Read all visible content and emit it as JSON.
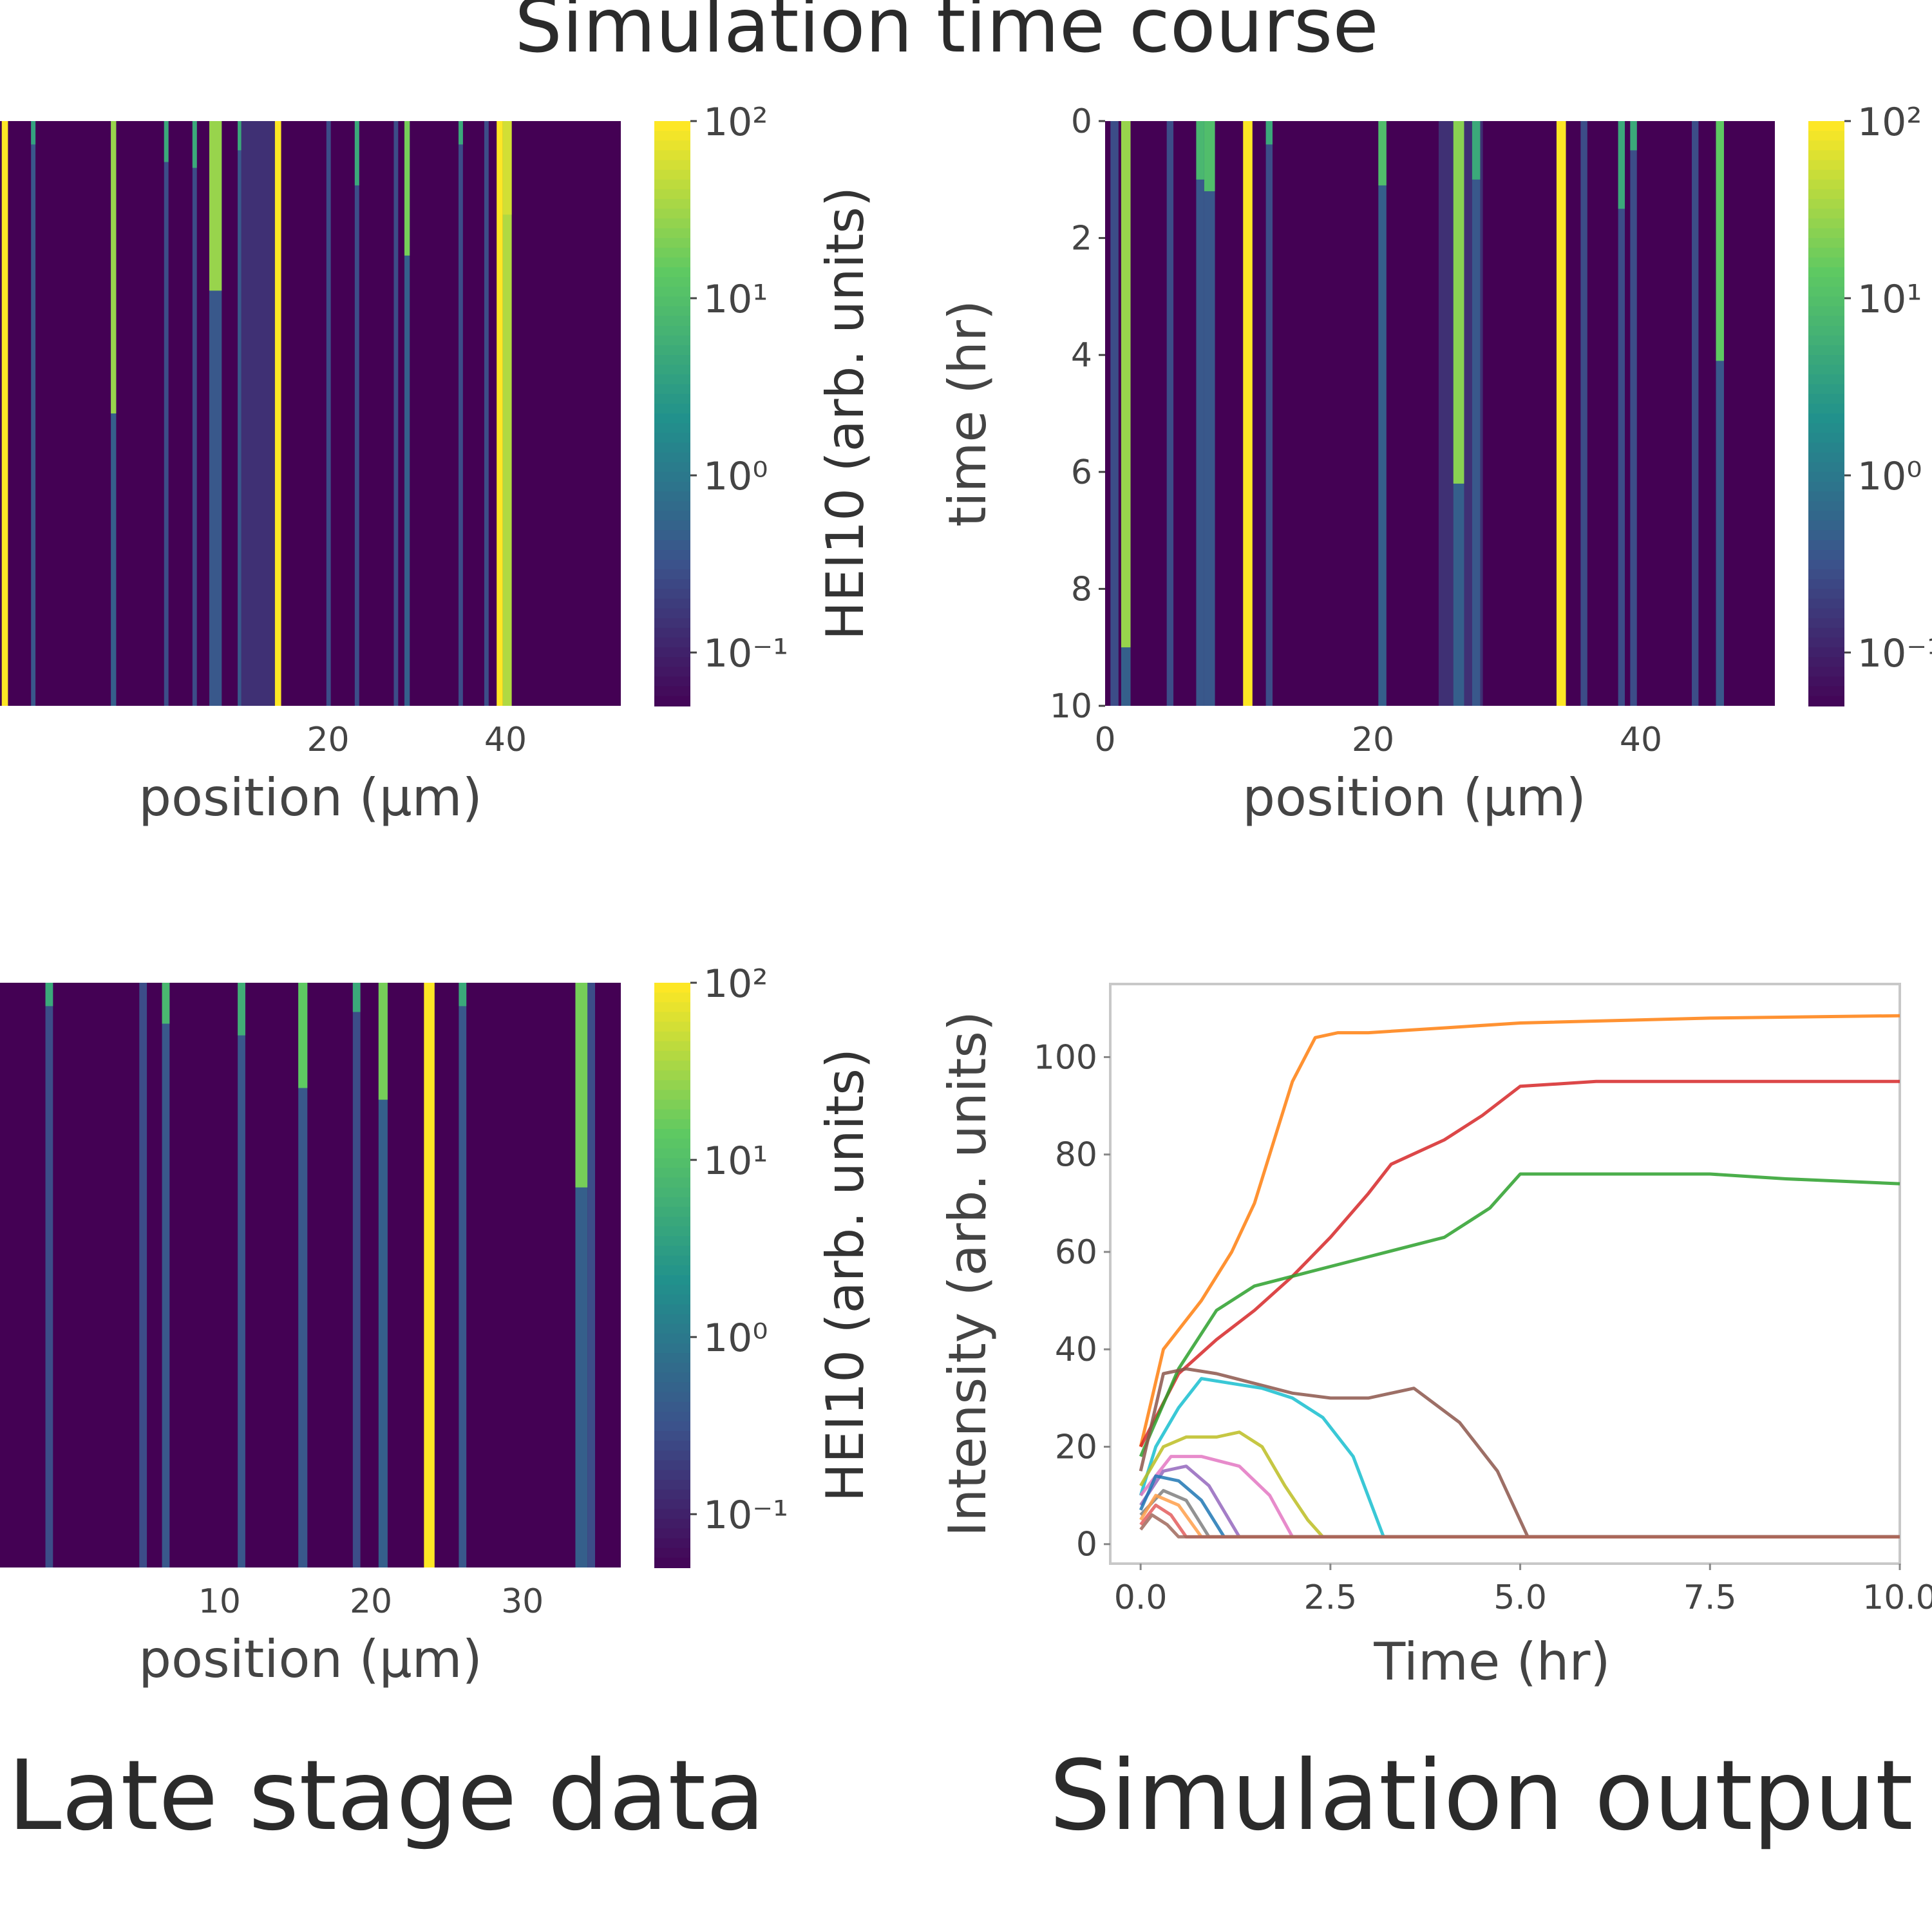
{
  "figure": {
    "title_top": "Simulation time course",
    "caption_left": "Late stage data",
    "caption_right": "Simulation output"
  },
  "colors": {
    "viridis": [
      "#440154",
      "#3b528b",
      "#21918c",
      "#5ec962",
      "#fde725"
    ],
    "background": "#440154"
  },
  "chart_data": [
    {
      "id": "heatmap-top-left",
      "type": "heatmap",
      "title": "",
      "xlabel": "position (μm)",
      "ylabel": "",
      "xlim": [
        -17,
        53
      ],
      "ylim": [
        0,
        10
      ],
      "xticks": [
        20,
        40
      ],
      "yticks": [],
      "colorbar": {
        "label": "HEI10 (arb. units)",
        "scale": "log",
        "range": [
          0.05,
          100
        ],
        "ticks": [
          "10²",
          "10¹",
          "10⁰",
          "10⁻¹"
        ],
        "tick_values": [
          100,
          10,
          1,
          0.1
        ]
      },
      "tracks": [
        {
          "x": -16.8,
          "value": 100,
          "w": 0.7
        },
        {
          "x": -13.5,
          "value": 0.4,
          "w": 0.5,
          "bright_end": 0.4,
          "bright_value": 4
        },
        {
          "x": -4.5,
          "value": 0.5,
          "w": 0.6,
          "bright_end": 5,
          "bright_value": 30
        },
        {
          "x": 1.5,
          "value": 0.3,
          "w": 0.5,
          "bright_end": 0.7,
          "bright_value": 5
        },
        {
          "x": 4.7,
          "value": 0.3,
          "w": 0.5,
          "bright_end": 0.8,
          "bright_value": 5
        },
        {
          "x": 6.6,
          "value": 0.4,
          "w": 1.4,
          "bright_end": 2.9,
          "bright_value": 30
        },
        {
          "x": 9.8,
          "value": 0.4,
          "w": 0.6,
          "bright_end": 0.5,
          "bright_value": 5
        },
        {
          "x": 10.2,
          "value": 0.15,
          "w": 3.8
        },
        {
          "x": 14.0,
          "value": 100,
          "w": 0.7
        },
        {
          "x": 19.8,
          "value": 0.3,
          "w": 0.5
        },
        {
          "x": 23.0,
          "value": 0.3,
          "w": 0.5,
          "bright_end": 1.1,
          "bright_value": 5
        },
        {
          "x": 27.4,
          "value": 0.3,
          "w": 0.5
        },
        {
          "x": 28.6,
          "value": 0.5,
          "w": 0.6,
          "bright_end": 2.3,
          "bright_value": 20
        },
        {
          "x": 34.7,
          "value": 0.3,
          "w": 0.5,
          "bright_end": 0.4,
          "bright_value": 5
        },
        {
          "x": 37.6,
          "value": 0.3,
          "w": 0.5
        },
        {
          "x": 39.0,
          "value": 100,
          "w": 0.7
        },
        {
          "x": 39.7,
          "value": 40,
          "w": 1.0,
          "bright_end": 1.6,
          "bright_value": 60
        }
      ]
    },
    {
      "id": "heatmap-top-right",
      "type": "heatmap",
      "title": "",
      "xlabel": "position (μm)",
      "ylabel": "time (hr)",
      "xlim": [
        0,
        50
      ],
      "ylim": [
        0,
        10
      ],
      "xticks": [
        0,
        20,
        40
      ],
      "yticks": [
        0,
        2,
        4,
        6,
        8,
        10
      ],
      "colorbar": {
        "label": "",
        "scale": "log",
        "range": [
          0.05,
          100
        ],
        "ticks": [
          "10²",
          "10¹",
          "10⁰",
          "10⁻¹"
        ],
        "tick_values": [
          100,
          10,
          1,
          0.1
        ]
      },
      "tracks": [
        {
          "x": 0.4,
          "value": 0.3,
          "w": 0.6
        },
        {
          "x": 1.2,
          "value": 0.5,
          "w": 0.7,
          "bright_end": 9,
          "bright_value": 30
        },
        {
          "x": 4.6,
          "value": 0.3,
          "w": 0.5
        },
        {
          "x": 6.8,
          "value": 0.4,
          "w": 0.6,
          "bright_end": 1.0,
          "bright_value": 8
        },
        {
          "x": 7.4,
          "value": 0.4,
          "w": 0.8,
          "bright_end": 1.2,
          "bright_value": 10
        },
        {
          "x": 10.3,
          "value": 100,
          "w": 0.7
        },
        {
          "x": 12.0,
          "value": 0.3,
          "w": 0.5,
          "bright_end": 0.4,
          "bright_value": 5
        },
        {
          "x": 20.4,
          "value": 0.5,
          "w": 0.6,
          "bright_end": 1.1,
          "bright_value": 10
        },
        {
          "x": 24.9,
          "value": 0.15,
          "w": 3.3,
          "bright_end": 0.0,
          "bright_value": 0.15
        },
        {
          "x": 26.0,
          "value": 0.5,
          "w": 0.8,
          "bright_end": 6.2,
          "bright_value": 25
        },
        {
          "x": 27.4,
          "value": 0.4,
          "w": 0.6,
          "bright_end": 1.0,
          "bright_value": 5
        },
        {
          "x": 33.7,
          "value": 100,
          "w": 0.7
        },
        {
          "x": 35.5,
          "value": 0.3,
          "w": 0.5
        },
        {
          "x": 38.3,
          "value": 0.3,
          "w": 0.5,
          "bright_end": 1.5,
          "bright_value": 5
        },
        {
          "x": 39.2,
          "value": 0.3,
          "w": 0.5,
          "bright_end": 0.5,
          "bright_value": 5
        },
        {
          "x": 43.8,
          "value": 0.3,
          "w": 0.5
        },
        {
          "x": 45.6,
          "value": 0.4,
          "w": 0.6,
          "bright_end": 4.1,
          "bright_value": 15
        }
      ]
    },
    {
      "id": "heatmap-bottom-left",
      "type": "heatmap",
      "title": "",
      "xlabel": "position (μm)",
      "ylabel": "",
      "xlim": [
        -4.5,
        36.5
      ],
      "ylim": [
        0,
        10
      ],
      "xticks": [
        10,
        20,
        30
      ],
      "yticks": [],
      "colorbar": {
        "label": "HEI10 (arb. units)",
        "scale": "log",
        "range": [
          0.05,
          100
        ],
        "ticks": [
          "10²",
          "10¹",
          "10⁰",
          "10⁻¹"
        ],
        "tick_values": [
          100,
          10,
          1,
          0.1
        ]
      },
      "tracks": [
        {
          "x": -1.5,
          "value": 0.3,
          "w": 0.5,
          "bright_end": 0.4,
          "bright_value": 5
        },
        {
          "x": 4.7,
          "value": 0.3,
          "w": 0.5
        },
        {
          "x": 6.2,
          "value": 0.4,
          "w": 0.5,
          "bright_end": 0.7,
          "bright_value": 8
        },
        {
          "x": 11.2,
          "value": 0.4,
          "w": 0.5,
          "bright_end": 0.9,
          "bright_value": 6
        },
        {
          "x": 15.2,
          "value": 0.4,
          "w": 0.6,
          "bright_end": 1.8,
          "bright_value": 15
        },
        {
          "x": 18.8,
          "value": 0.3,
          "w": 0.5,
          "bright_end": 0.5,
          "bright_value": 5
        },
        {
          "x": 20.5,
          "value": 0.5,
          "w": 0.6,
          "bright_end": 2.0,
          "bright_value": 20
        },
        {
          "x": 23.5,
          "value": 100,
          "w": 0.7
        },
        {
          "x": 25.8,
          "value": 0.4,
          "w": 0.5,
          "bright_end": 0.4,
          "bright_value": 5
        },
        {
          "x": 33.5,
          "value": 0.5,
          "w": 0.8,
          "bright_end": 3.5,
          "bright_value": 20
        },
        {
          "x": 34.3,
          "value": 0.3,
          "w": 0.5
        }
      ]
    },
    {
      "id": "line-bottom-right",
      "type": "line",
      "title": "",
      "xlabel": "Time (hr)",
      "ylabel": "Intensity (arb. units)",
      "xlim": [
        -0.4,
        10.0
      ],
      "ylim": [
        -4,
        115
      ],
      "xticks": [
        0.0,
        2.5,
        5.0,
        7.5,
        10.0
      ],
      "xtick_labels": [
        "0.0",
        "2.5",
        "5.0",
        "7.5",
        "10.0"
      ],
      "yticks": [
        0,
        20,
        40,
        60,
        80,
        100
      ],
      "yflat_baseline": 1.5,
      "series": [
        {
          "name": "orange",
          "color": "#ff7f0e",
          "x": [
            0,
            0.3,
            0.8,
            1.2,
            1.5,
            1.8,
            2.0,
            2.3,
            2.6,
            3.0,
            4.0,
            5.0,
            7.5,
            10.0
          ],
          "y": [
            20,
            40,
            50,
            60,
            70,
            85,
            95,
            104,
            105,
            105,
            106,
            107,
            108,
            108.5
          ]
        },
        {
          "name": "red",
          "color": "#d62728",
          "x": [
            0,
            0.5,
            1.0,
            1.5,
            2.0,
            2.5,
            3.0,
            3.3,
            4.0,
            4.5,
            5.0,
            6.0,
            7.5,
            10.0
          ],
          "y": [
            20,
            35,
            42,
            48,
            55,
            63,
            72,
            78,
            83,
            88,
            94,
            95,
            95,
            95
          ]
        },
        {
          "name": "green",
          "color": "#2ca02c",
          "x": [
            0,
            0.5,
            1.0,
            1.5,
            2.0,
            3.0,
            4.0,
            4.6,
            5.0,
            6.0,
            7.5,
            8.5,
            10.0
          ],
          "y": [
            18,
            36,
            48,
            53,
            55,
            59,
            63,
            69,
            76,
            76,
            76,
            75,
            74
          ]
        },
        {
          "name": "brown",
          "color": "#8c564b",
          "x": [
            0,
            0.3,
            0.6,
            1.0,
            1.5,
            2.0,
            2.5,
            3.0,
            3.6,
            4.2,
            4.7,
            5.1,
            10.0
          ],
          "y": [
            15,
            35,
            36,
            35,
            33,
            31,
            30,
            30,
            32,
            25,
            15,
            1.5,
            1.5
          ]
        },
        {
          "name": "cyan",
          "color": "#17becf",
          "x": [
            0,
            0.2,
            0.5,
            0.8,
            1.2,
            1.6,
            2.0,
            2.4,
            2.8,
            3.2,
            10.0
          ],
          "y": [
            10,
            20,
            28,
            34,
            33,
            32,
            30,
            26,
            18,
            1.5,
            1.5
          ]
        },
        {
          "name": "olive",
          "color": "#bcbd22",
          "x": [
            0,
            0.3,
            0.6,
            1.0,
            1.3,
            1.6,
            1.9,
            2.2,
            2.4,
            10.0
          ],
          "y": [
            12,
            20,
            22,
            22,
            23,
            20,
            12,
            5,
            1.5,
            1.5
          ]
        },
        {
          "name": "pink",
          "color": "#e377c2",
          "x": [
            0,
            0.4,
            0.8,
            1.3,
            1.7,
            2.0,
            10.0
          ],
          "y": [
            10,
            18,
            18,
            16,
            10,
            1.5,
            1.5
          ]
        },
        {
          "name": "purple",
          "color": "#9467bd",
          "x": [
            0,
            0.3,
            0.6,
            0.9,
            1.3,
            10.0
          ],
          "y": [
            8,
            15,
            16,
            12,
            1.5,
            1.5
          ]
        },
        {
          "name": "blue",
          "color": "#1f77b4",
          "x": [
            0,
            0.2,
            0.5,
            0.8,
            1.1,
            10.0
          ],
          "y": [
            7,
            14,
            13,
            9,
            1.5,
            1.5
          ]
        },
        {
          "name": "gray",
          "color": "#7f7f7f",
          "x": [
            0,
            0.3,
            0.6,
            0.9,
            10.0
          ],
          "y": [
            6,
            11,
            9,
            1.5,
            1.5
          ]
        },
        {
          "name": "orange-small",
          "color": "#ff9f4a",
          "x": [
            0,
            0.2,
            0.5,
            0.8,
            10.0
          ],
          "y": [
            5,
            10,
            8,
            1.5,
            1.5
          ]
        },
        {
          "name": "red-small",
          "color": "#e35d5d",
          "x": [
            0,
            0.2,
            0.4,
            0.6,
            10.0
          ],
          "y": [
            4,
            8,
            6,
            1.5,
            1.5
          ]
        },
        {
          "name": "brown-small",
          "color": "#a0685c",
          "x": [
            0,
            0.15,
            0.35,
            0.5,
            10.0
          ],
          "y": [
            3,
            6,
            4,
            1.5,
            1.5
          ]
        }
      ]
    }
  ]
}
